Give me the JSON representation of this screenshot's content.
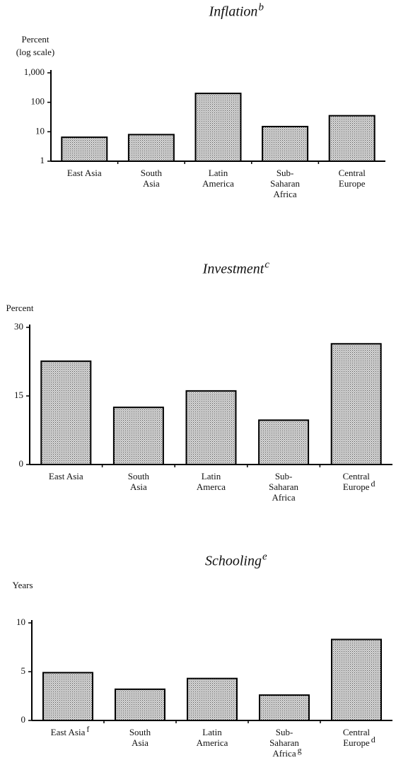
{
  "chart_data": [
    {
      "type": "bar",
      "title": "Inflation",
      "title_note": "b",
      "y_label": [
        "Percent",
        "(log scale)"
      ],
      "categories": [
        [
          "East Asia"
        ],
        [
          "South",
          "Asia"
        ],
        [
          "Latin",
          "America"
        ],
        [
          "Sub-",
          "Saharan",
          "Africa"
        ],
        [
          "Central",
          "Europe"
        ]
      ],
      "category_notes": [
        null,
        null,
        null,
        null,
        null
      ],
      "values": [
        6.5,
        8,
        200,
        15,
        35
      ],
      "log_scale": true,
      "ylim": [
        1,
        1000
      ],
      "yticks": [
        1,
        10,
        100,
        {
          "value": 1000,
          "label": "1,000"
        }
      ],
      "color": "#c4c4c4"
    },
    {
      "type": "bar",
      "title": "Investment",
      "title_note": "c",
      "y_label": [
        "Percent"
      ],
      "categories": [
        [
          "East  Asia"
        ],
        [
          "South",
          "Asia"
        ],
        [
          "Latin",
          "Amerca"
        ],
        [
          "Sub-",
          "Saharan",
          "Africa"
        ],
        [
          "Central",
          "Europe"
        ]
      ],
      "category_notes": [
        null,
        null,
        null,
        null,
        "d"
      ],
      "values": [
        22.6,
        12.5,
        16.1,
        9.7,
        26.4
      ],
      "log_scale": false,
      "ylim": [
        0,
        30
      ],
      "yticks": [
        0,
        15,
        30
      ],
      "color": "#c4c4c4"
    },
    {
      "type": "bar",
      "title": "Schooling",
      "title_note": "e",
      "y_label": [
        "Years"
      ],
      "categories": [
        [
          "East Asia"
        ],
        [
          "South",
          "Asia"
        ],
        [
          "Latin",
          "America"
        ],
        [
          "Sub-",
          "Saharan",
          "Africa"
        ],
        [
          "Central",
          "Europe"
        ]
      ],
      "category_notes": [
        "f",
        null,
        null,
        "g",
        "d"
      ],
      "values": [
        4.9,
        3.2,
        4.3,
        2.6,
        8.3
      ],
      "log_scale": false,
      "ylim": [
        0,
        10
      ],
      "yticks": [
        0,
        5,
        10
      ],
      "color": "#c4c4c4"
    }
  ]
}
